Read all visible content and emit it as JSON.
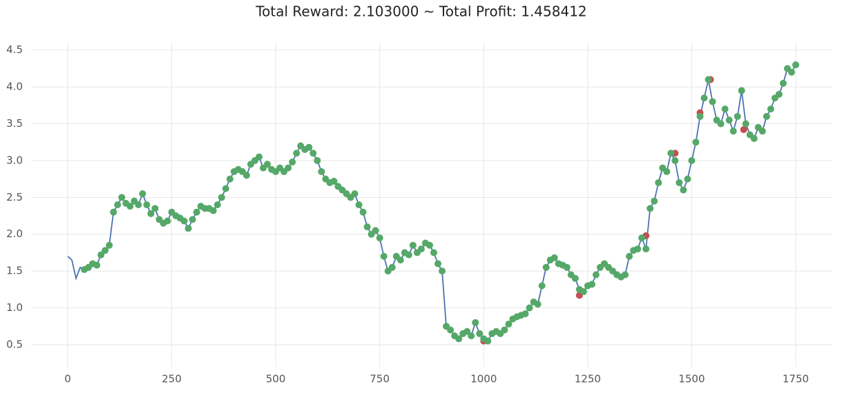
{
  "chart_data": {
    "type": "line",
    "title": "Total Reward: 2.103000 ~ Total Profit: 1.458412",
    "xlim": [
      -88,
      1838
    ],
    "ylim": [
      0.2,
      4.6
    ],
    "xticks": [
      0,
      250,
      500,
      750,
      1000,
      1250,
      1500,
      1750
    ],
    "yticks": [
      0.5,
      {
        "value": 1,
        "label": "1.0"
      },
      1.5,
      {
        "value": 2,
        "label": "2.0"
      },
      2.5,
      {
        "value": 3,
        "label": "3.0"
      },
      3.5,
      {
        "value": 4,
        "label": "4.0"
      },
      4.5
    ],
    "grid": true,
    "series": [
      {
        "type": "line",
        "color": "#4c72b0",
        "x": [
          0,
          10,
          20,
          30,
          40,
          50,
          60,
          70,
          80,
          90,
          100,
          110,
          120,
          130,
          140,
          150,
          160,
          170,
          180,
          190,
          200,
          210,
          220,
          230,
          240,
          250,
          260,
          270,
          280,
          290,
          300,
          310,
          320,
          330,
          340,
          350,
          360,
          370,
          380,
          390,
          400,
          410,
          420,
          430,
          440,
          450,
          460,
          470,
          480,
          490,
          500,
          510,
          520,
          530,
          540,
          550,
          560,
          570,
          580,
          590,
          600,
          610,
          620,
          630,
          640,
          650,
          660,
          670,
          680,
          690,
          700,
          710,
          720,
          730,
          740,
          750,
          760,
          770,
          780,
          790,
          800,
          810,
          820,
          830,
          840,
          850,
          860,
          870,
          880,
          890,
          900,
          910,
          920,
          930,
          940,
          950,
          960,
          970,
          980,
          990,
          1000,
          1010,
          1020,
          1030,
          1040,
          1050,
          1060,
          1070,
          1080,
          1090,
          1100,
          1110,
          1120,
          1130,
          1140,
          1150,
          1160,
          1170,
          1180,
          1190,
          1200,
          1210,
          1220,
          1230,
          1240,
          1250,
          1260,
          1270,
          1280,
          1290,
          1300,
          1310,
          1320,
          1330,
          1340,
          1350,
          1360,
          1370,
          1380,
          1390,
          1400,
          1410,
          1420,
          1430,
          1440,
          1450,
          1460,
          1470,
          1480,
          1490,
          1500,
          1510,
          1520,
          1530,
          1540,
          1550,
          1560,
          1570,
          1580,
          1590,
          1600,
          1610,
          1620,
          1630,
          1640,
          1650,
          1660,
          1670,
          1680,
          1690,
          1700,
          1710,
          1720,
          1730,
          1740,
          1750
        ],
        "values": [
          1.7,
          1.65,
          1.4,
          1.55,
          1.52,
          1.55,
          1.6,
          1.58,
          1.72,
          1.78,
          1.85,
          2.3,
          2.4,
          2.5,
          2.42,
          2.38,
          2.45,
          2.4,
          2.55,
          2.4,
          2.28,
          2.35,
          2.2,
          2.15,
          2.18,
          2.3,
          2.25,
          2.22,
          2.18,
          2.08,
          2.2,
          2.3,
          2.38,
          2.35,
          2.35,
          2.32,
          2.4,
          2.5,
          2.62,
          2.75,
          2.85,
          2.88,
          2.85,
          2.8,
          2.95,
          3.0,
          3.05,
          2.9,
          2.95,
          2.88,
          2.85,
          2.9,
          2.85,
          2.9,
          2.98,
          3.1,
          3.2,
          3.15,
          3.18,
          3.1,
          3.0,
          2.85,
          2.75,
          2.7,
          2.72,
          2.65,
          2.6,
          2.55,
          2.5,
          2.55,
          2.4,
          2.3,
          2.1,
          2.0,
          2.05,
          1.95,
          1.7,
          1.5,
          1.55,
          1.7,
          1.65,
          1.75,
          1.72,
          1.85,
          1.75,
          1.8,
          1.88,
          1.85,
          1.75,
          1.6,
          1.5,
          0.75,
          0.7,
          0.62,
          0.58,
          0.65,
          0.68,
          0.62,
          0.8,
          0.65,
          0.58,
          0.55,
          0.65,
          0.68,
          0.65,
          0.7,
          0.78,
          0.85,
          0.88,
          0.9,
          0.92,
          1.0,
          1.08,
          1.05,
          1.3,
          1.55,
          1.65,
          1.68,
          1.6,
          1.58,
          1.55,
          1.45,
          1.4,
          1.25,
          1.22,
          1.3,
          1.32,
          1.45,
          1.55,
          1.6,
          1.55,
          1.5,
          1.45,
          1.42,
          1.45,
          1.7,
          1.78,
          1.8,
          1.95,
          1.8,
          2.35,
          2.45,
          2.7,
          2.9,
          2.85,
          3.1,
          3.0,
          2.7,
          2.6,
          2.75,
          3.0,
          3.25,
          3.6,
          3.85,
          4.1,
          3.8,
          3.55,
          3.5,
          3.7,
          3.55,
          3.4,
          3.6,
          3.95,
          3.5,
          3.35,
          3.3,
          3.45,
          3.4,
          3.6,
          3.7,
          3.85,
          3.9,
          4.05,
          4.25,
          4.2,
          4.3
        ]
      },
      {
        "type": "scatter",
        "color": "#c44e52",
        "x": [
          1000,
          1230,
          1390,
          1460,
          1520,
          1545,
          1625
        ],
        "values": [
          0.55,
          1.17,
          1.98,
          3.1,
          3.65,
          4.1,
          3.42
        ]
      },
      {
        "type": "scatter",
        "color": "#55a868",
        "x": [
          40,
          50,
          60,
          70,
          80,
          90,
          100,
          110,
          120,
          130,
          140,
          150,
          160,
          170,
          180,
          190,
          200,
          210,
          220,
          230,
          240,
          250,
          260,
          270,
          280,
          290,
          300,
          310,
          320,
          330,
          340,
          350,
          360,
          370,
          380,
          390,
          400,
          410,
          420,
          430,
          440,
          450,
          460,
          470,
          480,
          490,
          500,
          510,
          520,
          530,
          540,
          550,
          560,
          570,
          580,
          590,
          600,
          610,
          620,
          630,
          640,
          650,
          660,
          670,
          680,
          690,
          700,
          710,
          720,
          730,
          740,
          750,
          760,
          770,
          780,
          790,
          800,
          810,
          820,
          830,
          840,
          850,
          860,
          870,
          880,
          890,
          900,
          910,
          920,
          930,
          940,
          950,
          960,
          970,
          980,
          990,
          1000,
          1010,
          1020,
          1030,
          1040,
          1050,
          1060,
          1070,
          1080,
          1090,
          1100,
          1110,
          1120,
          1130,
          1140,
          1150,
          1160,
          1170,
          1180,
          1190,
          1200,
          1210,
          1220,
          1230,
          1240,
          1250,
          1260,
          1270,
          1280,
          1290,
          1300,
          1310,
          1320,
          1330,
          1340,
          1350,
          1360,
          1370,
          1380,
          1390,
          1400,
          1410,
          1420,
          1430,
          1440,
          1450,
          1460,
          1470,
          1480,
          1490,
          1500,
          1510,
          1520,
          1530,
          1540,
          1550,
          1560,
          1570,
          1580,
          1590,
          1600,
          1610,
          1620,
          1630,
          1640,
          1650,
          1660,
          1670,
          1680,
          1690,
          1700,
          1710,
          1720,
          1730,
          1740,
          1750
        ],
        "values": [
          1.52,
          1.55,
          1.6,
          1.58,
          1.72,
          1.78,
          1.85,
          2.3,
          2.4,
          2.5,
          2.42,
          2.38,
          2.45,
          2.4,
          2.55,
          2.4,
          2.28,
          2.35,
          2.2,
          2.15,
          2.18,
          2.3,
          2.25,
          2.22,
          2.18,
          2.08,
          2.2,
          2.3,
          2.38,
          2.35,
          2.35,
          2.32,
          2.4,
          2.5,
          2.62,
          2.75,
          2.85,
          2.88,
          2.85,
          2.8,
          2.95,
          3.0,
          3.05,
          2.9,
          2.95,
          2.88,
          2.85,
          2.9,
          2.85,
          2.9,
          2.98,
          3.1,
          3.2,
          3.15,
          3.18,
          3.1,
          3.0,
          2.85,
          2.75,
          2.7,
          2.72,
          2.65,
          2.6,
          2.55,
          2.5,
          2.55,
          2.4,
          2.3,
          2.1,
          2.0,
          2.05,
          1.95,
          1.7,
          1.5,
          1.55,
          1.7,
          1.65,
          1.75,
          1.72,
          1.85,
          1.75,
          1.8,
          1.88,
          1.85,
          1.75,
          1.6,
          1.5,
          0.75,
          0.7,
          0.62,
          0.58,
          0.65,
          0.68,
          0.62,
          0.8,
          0.65,
          0.58,
          0.55,
          0.65,
          0.68,
          0.65,
          0.7,
          0.78,
          0.85,
          0.88,
          0.9,
          0.92,
          1.0,
          1.08,
          1.05,
          1.3,
          1.55,
          1.65,
          1.68,
          1.6,
          1.58,
          1.55,
          1.45,
          1.4,
          1.25,
          1.22,
          1.3,
          1.32,
          1.45,
          1.55,
          1.6,
          1.55,
          1.5,
          1.45,
          1.42,
          1.45,
          1.7,
          1.78,
          1.8,
          1.95,
          1.8,
          2.35,
          2.45,
          2.7,
          2.9,
          2.85,
          3.1,
          3.0,
          2.7,
          2.6,
          2.75,
          3.0,
          3.25,
          3.6,
          3.85,
          4.1,
          3.8,
          3.55,
          3.5,
          3.7,
          3.55,
          3.4,
          3.6,
          3.95,
          3.5,
          3.35,
          3.3,
          3.45,
          3.4,
          3.6,
          3.7,
          3.85,
          3.9,
          4.05,
          4.25,
          4.2,
          4.3
        ]
      }
    ]
  }
}
